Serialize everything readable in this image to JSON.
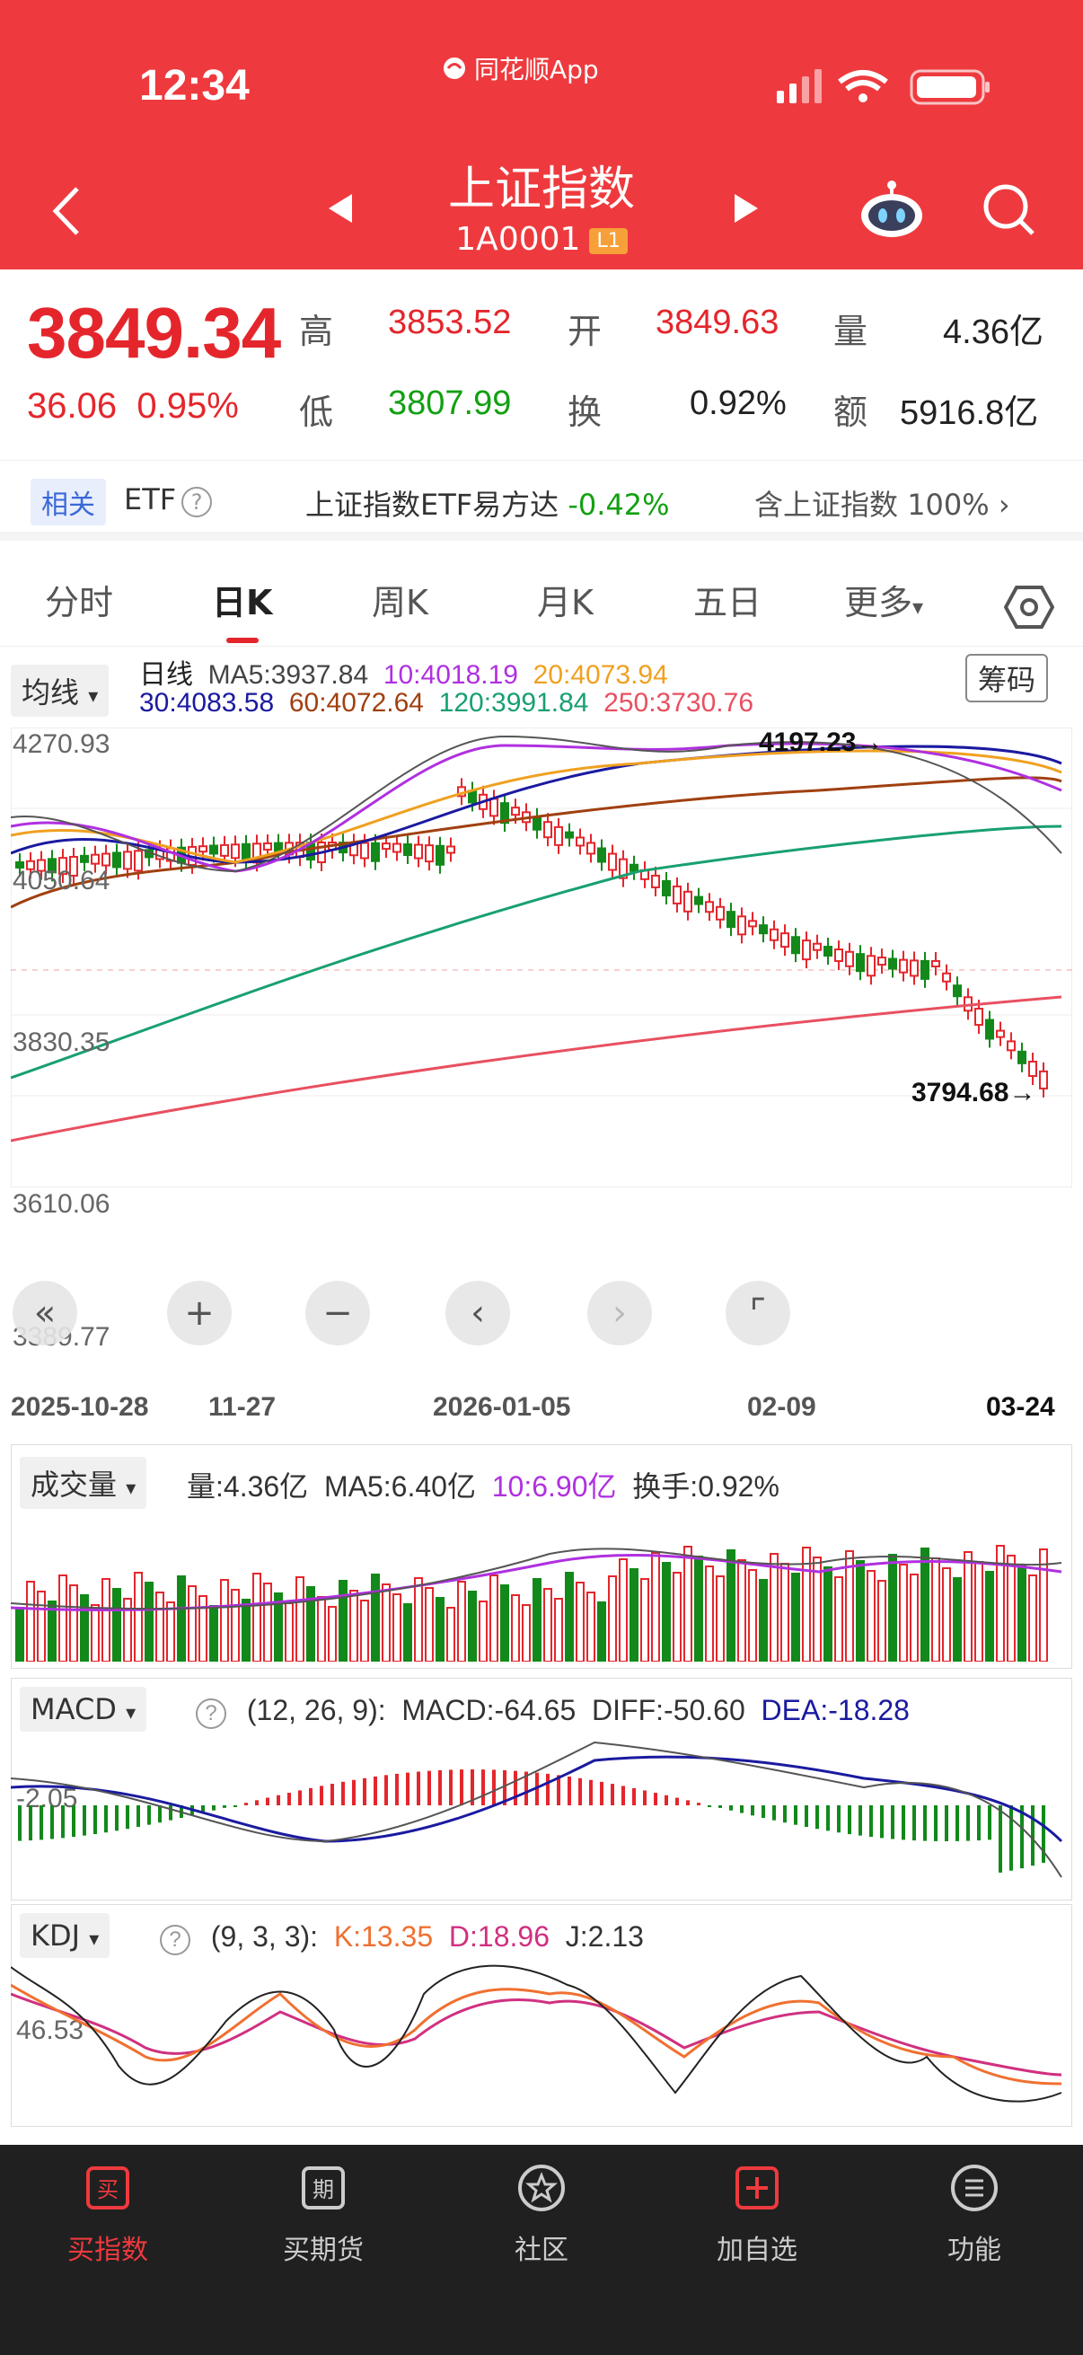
{
  "status_bar": {
    "time": "12:34",
    "app_name": "同花顺App"
  },
  "header": {
    "title": "上证指数",
    "code": "1A0001",
    "level_badge": "L1"
  },
  "quote": {
    "price": "3849.34",
    "change": "36.06",
    "change_pct": "0.95%",
    "high_label": "高",
    "high": "3853.52",
    "low_label": "低",
    "low": "3807.99",
    "open_label": "开",
    "open": "3849.63",
    "turnover_label": "换",
    "turnover": "0.92%",
    "volume_label": "量",
    "volume": "4.36亿",
    "amount_label": "额",
    "amount": "5916.8亿"
  },
  "related": {
    "tag": "相关",
    "etf": "ETF",
    "item_name": "上证指数ETF易方达",
    "item_change": "-0.42%",
    "contain_label": "含上证指数",
    "contain_pct": "100%"
  },
  "tabs": [
    "分时",
    "日K",
    "周K",
    "月K",
    "五日",
    "更多"
  ],
  "active_tab": "日K",
  "kline": {
    "ma_selector": "均线",
    "chip_button": "筹码",
    "period": "日线",
    "ma5": "MA5:3937.84",
    "ma10": "10:4018.19",
    "ma20": "20:4073.94",
    "ma30": "30:4083.58",
    "ma60": "60:4072.64",
    "ma120": "120:3991.84",
    "ma250": "250:3730.76",
    "y_labels": [
      "4270.93",
      "4050.64",
      "3830.35",
      "3610.06",
      "3389.77"
    ],
    "x_labels": [
      "2025-10-28",
      "11-27",
      "2026-01-05",
      "02-09",
      "03-24"
    ],
    "max_annotation": "4197.23→",
    "min_annotation": "3794.68→",
    "colors": {
      "up": "#e4262c",
      "down": "#12891a",
      "ma5": "#444444",
      "ma10": "#b030e0",
      "ma20": "#f0a020",
      "ma30": "#1a1aa0",
      "ma60": "#a04010",
      "ma120": "#18a070",
      "ma250": "#e85060"
    }
  },
  "volume_panel": {
    "selector": "成交量",
    "vol": "量:4.36亿",
    "ma5": "MA5:6.40亿",
    "ma10": "10:6.90亿",
    "turnover": "换手:0.92%"
  },
  "macd_panel": {
    "selector": "MACD",
    "params": "(12, 26, 9):",
    "macd": "MACD:-64.65",
    "diff": "DIFF:-50.60",
    "dea": "DEA:-18.28",
    "axis_label": "-2.05"
  },
  "kdj_panel": {
    "selector": "KDJ",
    "params": "(9, 3, 3):",
    "k": "K:13.35",
    "d": "D:18.96",
    "j": "J:2.13",
    "axis_label": "46.53"
  },
  "bottom_nav": [
    {
      "label": "买指数",
      "icon": "buy-index-icon"
    },
    {
      "label": "买期货",
      "icon": "futures-icon"
    },
    {
      "label": "社区",
      "icon": "community-icon"
    },
    {
      "label": "加自选",
      "icon": "add-watchlist-icon"
    },
    {
      "label": "功能",
      "icon": "menu-icon"
    }
  ]
}
